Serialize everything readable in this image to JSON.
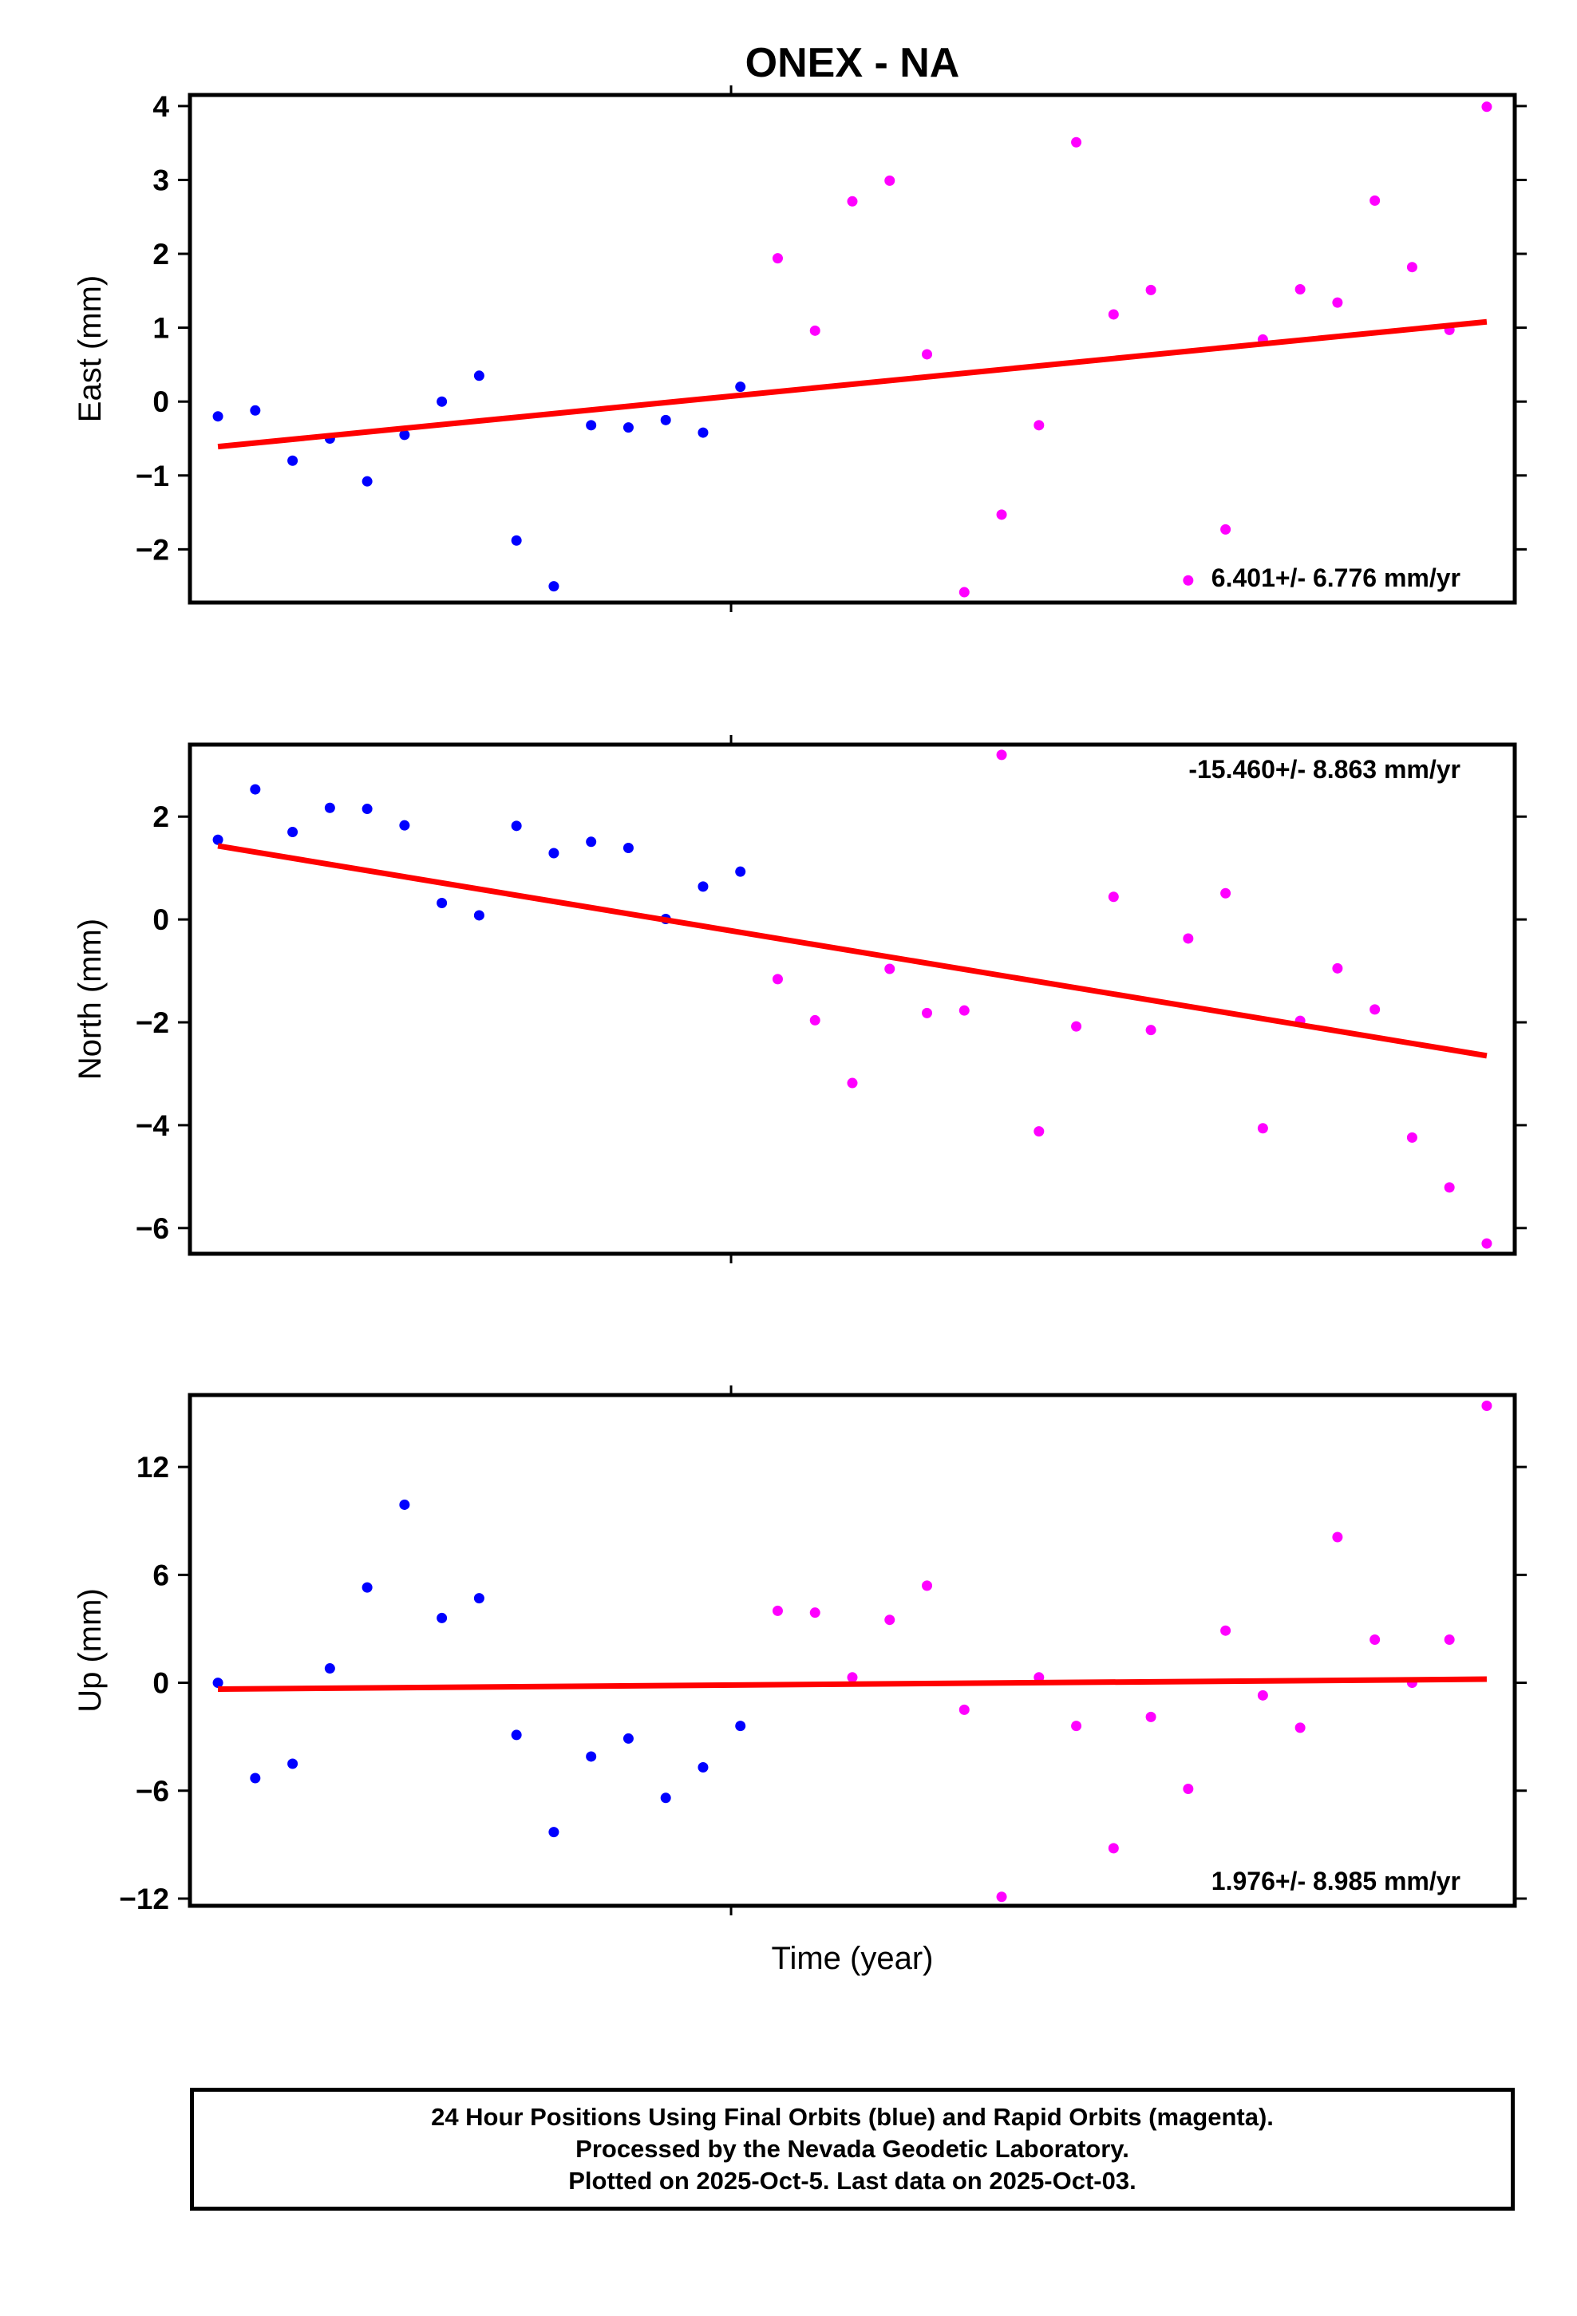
{
  "title": "ONEX - NA",
  "colors": {
    "final": "#0000ff",
    "rapid": "#ff00ff",
    "fit": "#ff0000",
    "axis": "#000000"
  },
  "chart_data": [
    {
      "type": "scatter",
      "ylabel": "East (mm)",
      "xlabel": "",
      "rate_label": "6.401+/- 6.776 mm/yr",
      "ylim": [
        -2.72,
        4.15
      ],
      "yticks": [
        4,
        3,
        2,
        1,
        0,
        -1,
        -2
      ],
      "ytick_labels": [
        "4",
        "3",
        "2",
        "1",
        "0",
        "−1",
        "−2"
      ],
      "xlim": [
        0,
        35.5
      ],
      "x_ticks": [
        14.5
      ],
      "series": [
        {
          "name": "Final Orbits",
          "color": "#0000ff",
          "x": [
            0.75,
            1.75,
            2.75,
            3.75,
            4.75,
            5.75,
            6.75,
            7.75,
            8.75,
            9.75,
            10.75,
            11.75,
            12.75,
            13.75,
            14.75
          ],
          "y": [
            -0.2,
            -0.12,
            -0.8,
            -0.5,
            -1.08,
            -0.45,
            0.0,
            0.35,
            -1.88,
            -2.5,
            -0.32,
            -0.35,
            -0.25,
            -0.42,
            0.2
          ]
        },
        {
          "name": "Rapid Orbits",
          "color": "#ff00ff",
          "x": [
            15.75,
            16.75,
            17.75,
            18.75,
            19.75,
            20.75,
            21.75,
            22.75,
            23.75,
            24.75,
            25.75,
            26.75,
            27.75,
            28.75,
            29.75,
            30.75,
            31.75,
            32.75,
            33.75,
            34.75
          ],
          "y": [
            1.94,
            0.96,
            2.71,
            2.99,
            0.64,
            -2.58,
            -1.53,
            -0.32,
            3.51,
            1.18,
            1.51,
            -2.42,
            -1.73,
            0.84,
            1.52,
            1.34,
            2.72,
            1.82,
            0.97,
            3.99
          ]
        }
      ],
      "fit": {
        "x": [
          0.75,
          34.75
        ],
        "y": [
          -0.61,
          1.08
        ]
      }
    },
    {
      "type": "scatter",
      "ylabel": "North (mm)",
      "xlabel": "",
      "rate_label": "-15.460+/- 8.863 mm/yr",
      "ylim": [
        -6.5,
        3.4
      ],
      "yticks": [
        2,
        0,
        -2,
        -4,
        -6
      ],
      "ytick_labels": [
        "2",
        "0",
        "−2",
        "−4",
        "−6"
      ],
      "xlim": [
        0,
        35.5
      ],
      "x_ticks": [
        14.5
      ],
      "series": [
        {
          "name": "Final Orbits",
          "color": "#0000ff",
          "x": [
            0.75,
            1.75,
            2.75,
            3.75,
            4.75,
            5.75,
            6.75,
            7.75,
            8.75,
            9.75,
            10.75,
            11.75,
            12.75,
            13.75,
            14.75
          ],
          "y": [
            1.55,
            2.53,
            1.7,
            2.17,
            2.15,
            1.83,
            0.32,
            0.08,
            1.82,
            1.29,
            1.51,
            1.39,
            0.01,
            0.64,
            0.93
          ]
        },
        {
          "name": "Rapid Orbits",
          "color": "#ff00ff",
          "x": [
            15.75,
            16.75,
            17.75,
            18.75,
            19.75,
            20.75,
            21.75,
            22.75,
            23.75,
            24.75,
            25.75,
            26.75,
            27.75,
            28.75,
            29.75,
            30.75,
            31.75,
            32.75,
            33.75,
            34.75
          ],
          "y": [
            -1.16,
            -1.96,
            -3.18,
            -0.96,
            -1.82,
            -1.77,
            3.2,
            -4.12,
            -2.08,
            0.44,
            -2.15,
            -0.37,
            0.51,
            -4.06,
            -1.97,
            -0.95,
            -1.75,
            -4.24,
            -5.21,
            -6.3
          ]
        }
      ],
      "fit": {
        "x": [
          0.75,
          34.75
        ],
        "y": [
          1.43,
          -2.65
        ]
      }
    },
    {
      "type": "scatter",
      "ylabel": "Up (mm)",
      "xlabel": "Time (year)",
      "rate_label": "1.976+/- 8.985 mm/yr",
      "ylim": [
        -12.4,
        16.0
      ],
      "yticks": [
        12,
        6,
        0,
        -6,
        -12
      ],
      "ytick_labels": [
        "12",
        "6",
        "0",
        "−6",
        "−12"
      ],
      "xlim": [
        0,
        35.5
      ],
      "x_ticks": [
        14.5
      ],
      "series": [
        {
          "name": "Final Orbits",
          "color": "#0000ff",
          "x": [
            0.75,
            1.75,
            2.75,
            3.75,
            4.75,
            5.75,
            6.75,
            7.75,
            8.75,
            9.75,
            10.75,
            11.75,
            12.75,
            13.75,
            14.75
          ],
          "y": [
            0.0,
            -5.3,
            -4.5,
            0.8,
            5.3,
            9.9,
            3.6,
            4.7,
            -2.9,
            -8.3,
            -4.1,
            -3.1,
            -6.4,
            -4.7,
            -2.4
          ]
        },
        {
          "name": "Rapid Orbits",
          "color": "#ff00ff",
          "x": [
            15.75,
            16.75,
            17.75,
            18.75,
            19.75,
            20.75,
            21.75,
            22.75,
            23.75,
            24.75,
            25.75,
            26.75,
            27.75,
            28.75,
            29.75,
            30.75,
            31.75,
            32.75,
            33.75,
            34.75
          ],
          "y": [
            4.0,
            3.9,
            0.3,
            3.5,
            5.4,
            -1.5,
            -11.9,
            0.3,
            -2.4,
            -9.2,
            -1.9,
            -5.9,
            2.9,
            -0.7,
            -2.5,
            8.1,
            2.4,
            0.0,
            2.4,
            15.4
          ]
        }
      ],
      "fit": {
        "x": [
          0.75,
          34.75
        ],
        "y": [
          -0.35,
          0.2
        ]
      }
    }
  ],
  "caption": {
    "line1": "24 Hour Positions Using Final Orbits (blue) and Rapid Orbits (magenta).",
    "line2": "Processed by the Nevada Geodetic Laboratory.",
    "line3": "Plotted on 2025-Oct-5. Last data on 2025-Oct-03."
  }
}
